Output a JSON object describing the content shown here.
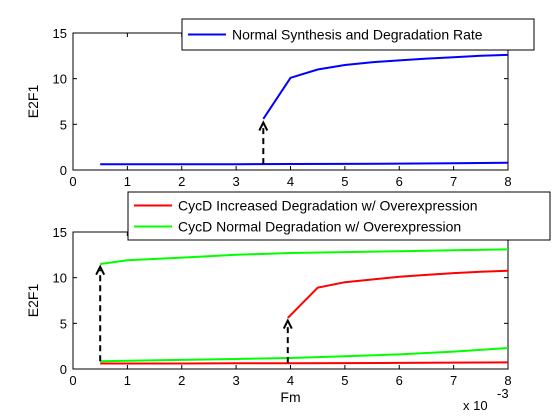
{
  "chart_data": [
    {
      "type": "line",
      "title": "",
      "xlabel": "",
      "ylabel": "E2F1",
      "xlim": [
        0,
        8
      ],
      "ylim": [
        0,
        15
      ],
      "xticks": [
        "0",
        "1",
        "2",
        "3",
        "4",
        "5",
        "6",
        "7",
        "8"
      ],
      "yticks": [
        "0",
        "5",
        "10",
        "15"
      ],
      "grid": false,
      "legend_position": "top-right",
      "series": [
        {
          "name": "Normal Synthesis and Degradation Rate",
          "color": "#0000ff",
          "branches": [
            {
              "x": [
                0.5,
                1,
                2,
                3,
                4,
                5,
                6,
                7,
                8
              ],
              "y": [
                0.62,
                0.62,
                0.63,
                0.64,
                0.66,
                0.67,
                0.7,
                0.73,
                0.8
              ]
            },
            {
              "x": [
                3.5,
                4,
                4.5,
                5,
                5.5,
                6,
                6.5,
                7,
                7.5,
                8
              ],
              "y": [
                5.6,
                10.1,
                11.0,
                11.5,
                11.8,
                12.0,
                12.2,
                12.35,
                12.5,
                12.6
              ]
            }
          ]
        }
      ],
      "arrows": [
        {
          "x": 3.5,
          "y_from": 0.65,
          "y_to": 5.2,
          "color": "#000000",
          "style": "dashed"
        }
      ]
    },
    {
      "type": "line",
      "title": "",
      "xlabel": "Fm",
      "ylabel": "E2F1",
      "xlim": [
        0,
        8
      ],
      "ylim": [
        0,
        15
      ],
      "xticks": [
        "0",
        "1",
        "2",
        "3",
        "4",
        "5",
        "6",
        "7",
        "8"
      ],
      "yticks": [
        "0",
        "5",
        "10",
        "15"
      ],
      "x_multiplier": "x 10",
      "x_multiplier_exponent": "-3",
      "grid": false,
      "legend_position": "above-right",
      "series": [
        {
          "name": "CycD Increased Degradation w/ Overexpression",
          "color": "#ff0000",
          "branches": [
            {
              "x": [
                0.5,
                1,
                2,
                3,
                4,
                5,
                6,
                7,
                8
              ],
              "y": [
                0.6,
                0.6,
                0.6,
                0.62,
                0.63,
                0.65,
                0.67,
                0.7,
                0.72
              ]
            },
            {
              "x": [
                3.95,
                4.5,
                5,
                5.5,
                6,
                6.5,
                7,
                7.5,
                8
              ],
              "y": [
                5.6,
                8.9,
                9.5,
                9.8,
                10.1,
                10.3,
                10.5,
                10.65,
                10.75
              ]
            }
          ]
        },
        {
          "name": "CycD Normal Degradation w/ Overexpression",
          "color": "#00ff00",
          "branches": [
            {
              "x": [
                0.5,
                1,
                2,
                3,
                4,
                5,
                6,
                7,
                8
              ],
              "y": [
                0.85,
                0.9,
                1.0,
                1.1,
                1.2,
                1.4,
                1.6,
                1.9,
                2.3
              ]
            },
            {
              "x": [
                0.5,
                1,
                2,
                3,
                4,
                5,
                6,
                7,
                8
              ],
              "y": [
                11.5,
                11.9,
                12.2,
                12.5,
                12.7,
                12.8,
                12.9,
                13.0,
                13.1
              ]
            }
          ]
        }
      ],
      "arrows": [
        {
          "x": 0.5,
          "y_from": 0.85,
          "y_to": 11.2,
          "color": "#000000",
          "style": "dashed"
        },
        {
          "x": 3.95,
          "y_from": 0.65,
          "y_to": 5.3,
          "color": "#000000",
          "style": "dashed"
        }
      ]
    }
  ]
}
